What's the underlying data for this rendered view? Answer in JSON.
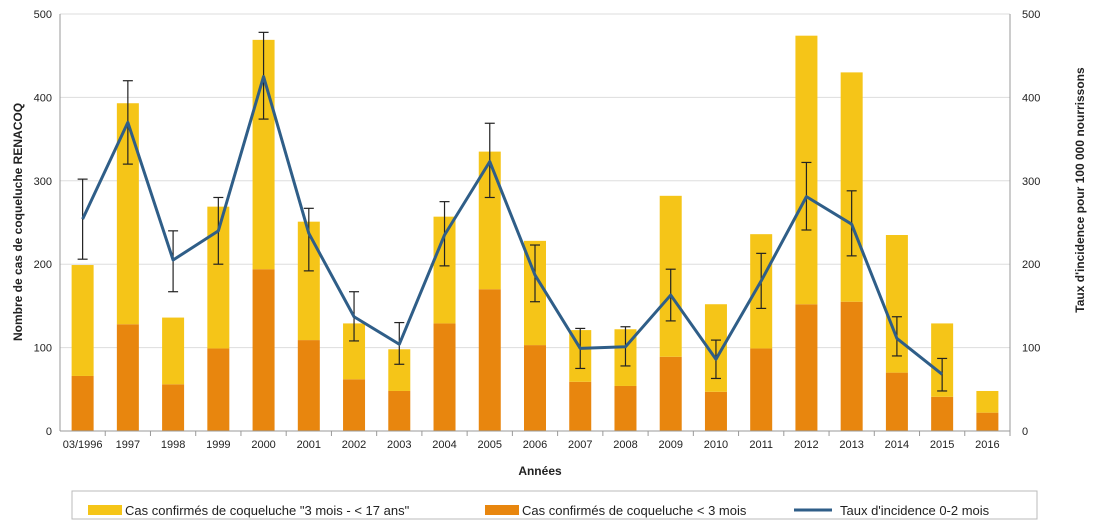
{
  "colors": {
    "bar_upper": "#F5C518",
    "bar_lower": "#E8860E",
    "line": "#2F5E88",
    "grid": "#dddddd",
    "axis": "#999999"
  },
  "chart_data": {
    "type": "bar",
    "categories": [
      "03/1996",
      "1997",
      "1998",
      "1999",
      "2000",
      "2001",
      "2002",
      "2003",
      "2004",
      "2005",
      "2006",
      "2007",
      "2008",
      "2009",
      "2010",
      "2011",
      "2012",
      "2013",
      "2014",
      "2015",
      "2016"
    ],
    "series": [
      {
        "name": "Cas confirmés de coqueluche \"3 mois - < 17 ans\"",
        "kind": "stacked-bar",
        "axis": "left",
        "values": [
          133,
          265,
          80,
          170,
          275,
          142,
          67,
          50,
          128,
          165,
          125,
          62,
          68,
          193,
          105,
          137,
          322,
          275,
          165,
          88,
          26
        ]
      },
      {
        "name": "Cas confirmés de coqueluche < 3 mois",
        "kind": "stacked-bar",
        "axis": "left",
        "values": [
          66,
          128,
          56,
          99,
          194,
          109,
          62,
          48,
          129,
          170,
          103,
          59,
          54,
          89,
          47,
          99,
          152,
          155,
          70,
          41,
          22
        ]
      },
      {
        "name": "Taux d'incidence 0-2 mois",
        "kind": "line",
        "axis": "right",
        "values": [
          254,
          370,
          205,
          240,
          425,
          237,
          137,
          104,
          235,
          323,
          187,
          99,
          101,
          163,
          86,
          180,
          281,
          248,
          111,
          68,
          null
        ],
        "error_low": [
          206,
          320,
          167,
          200,
          374,
          192,
          108,
          80,
          198,
          280,
          155,
          75,
          78,
          132,
          63,
          147,
          241,
          210,
          90,
          48,
          null
        ],
        "error_high": [
          302,
          420,
          240,
          280,
          478,
          267,
          167,
          130,
          275,
          369,
          223,
          123,
          125,
          194,
          109,
          213,
          322,
          288,
          137,
          87,
          null
        ]
      }
    ],
    "ylabel": "Nombre de cas de coqueluche RENACOQ",
    "y2label": "Taux d'incidence pour 100 000 nourrissons",
    "xlabel": "Années",
    "ylim": [
      0,
      500
    ],
    "y2lim": [
      0,
      500
    ],
    "yticks": [
      "0",
      "100",
      "200",
      "300",
      "400",
      "500"
    ],
    "y2ticks": [
      "0",
      "100",
      "200",
      "300",
      "400",
      "500"
    ],
    "grid": true,
    "legend_position": "bottom"
  },
  "legend": {
    "upper_label": "Cas confirmés de coqueluche \"3 mois - < 17 ans\"",
    "lower_label": "Cas confirmés de coqueluche < 3 mois",
    "line_label": "Taux d'incidence 0-2 mois"
  }
}
